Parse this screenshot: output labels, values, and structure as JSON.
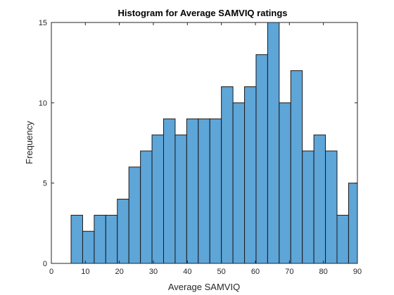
{
  "chart_data": {
    "type": "bar",
    "title": "Histogram for Average SAMVIQ ratings",
    "xlabel": "Average SAMVIQ",
    "ylabel": "Frequency",
    "xlim": [
      0,
      90
    ],
    "ylim": [
      0,
      15
    ],
    "x_ticks": [
      "0",
      "10",
      "20",
      "30",
      "40",
      "50",
      "60",
      "70",
      "80",
      "90"
    ],
    "y_ticks": [
      "0",
      "5",
      "10",
      "15"
    ],
    "bin_edges": [
      5.8,
      9.2,
      12.6,
      16.0,
      19.4,
      22.8,
      26.2,
      29.6,
      33.0,
      36.4,
      39.8,
      43.2,
      46.6,
      50.0,
      53.4,
      56.8,
      60.2,
      63.6,
      67.0,
      70.4,
      73.8,
      77.2,
      80.6,
      84.0,
      87.4,
      90.8
    ],
    "values": [
      3,
      2,
      3,
      3,
      4,
      6,
      7,
      8,
      9,
      8,
      9,
      9,
      9,
      11,
      10,
      11,
      13,
      15,
      10,
      12,
      7,
      8,
      7,
      3,
      5
    ],
    "grid": false,
    "colors": {
      "bar_fill": "#5ea5d8",
      "bar_edge": "#1a1a1a",
      "axis": "#262626"
    }
  }
}
